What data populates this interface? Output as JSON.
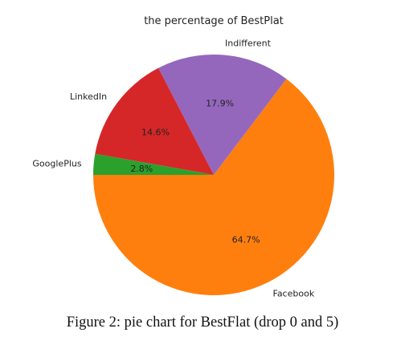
{
  "chart_data": {
    "type": "pie",
    "title": "the percentage of BestPlat",
    "labels": [
      "Facebook",
      "Indifferent",
      "LinkedIn",
      "GooglePlus"
    ],
    "values": [
      64.7,
      17.9,
      14.6,
      2.8
    ],
    "value_labels": [
      "64.7%",
      "17.9%",
      "14.6%",
      "2.8%"
    ],
    "colors": [
      "#ff7f0e",
      "#9467bd",
      "#d62728",
      "#2ca02c"
    ],
    "start_angle_deg": 180,
    "direction": "counterclockwise"
  },
  "caption": "Figure 2: pie chart for BestFlat (drop 0 and 5)"
}
